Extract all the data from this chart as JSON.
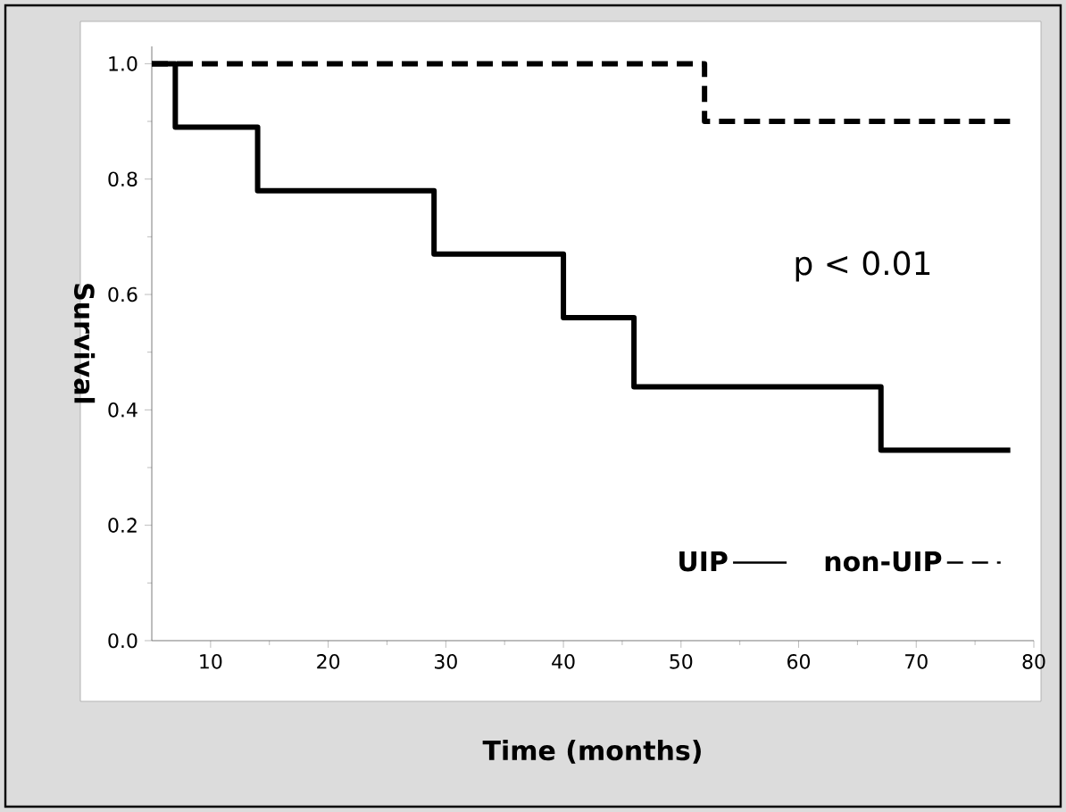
{
  "chart_data": {
    "type": "step",
    "xlabel": "Time (months)",
    "ylabel": "Survival",
    "annotations": [
      "p < 0.01"
    ],
    "series": [
      {
        "name": "UIP",
        "color": "#000000",
        "line_style": "solid",
        "x": [
          5,
          7,
          14,
          29,
          40,
          46,
          67,
          78
        ],
        "values": [
          1.0,
          0.89,
          0.78,
          0.67,
          0.56,
          0.44,
          0.33,
          0.33
        ]
      },
      {
        "name": "non-UIP",
        "color": "#000000",
        "line_style": "dashed",
        "x": [
          5,
          52,
          78
        ],
        "values": [
          1.0,
          0.9,
          0.9
        ]
      }
    ],
    "xlim": [
      5,
      80
    ],
    "xticks": [
      10,
      20,
      30,
      40,
      50,
      60,
      70,
      80
    ],
    "ylim": [
      0,
      1.03
    ],
    "yticks": [
      {
        "value": 0,
        "label": "0.0"
      },
      {
        "value": 0.2,
        "label": "0.2"
      },
      {
        "value": 0.4,
        "label": "0.4"
      },
      {
        "value": 0.6,
        "label": "0.6"
      },
      {
        "value": 0.8,
        "label": "0.8"
      },
      {
        "value": 1.0,
        "label": "1.0"
      }
    ],
    "legend": "bottom right",
    "grid": false,
    "marker": "none"
  }
}
